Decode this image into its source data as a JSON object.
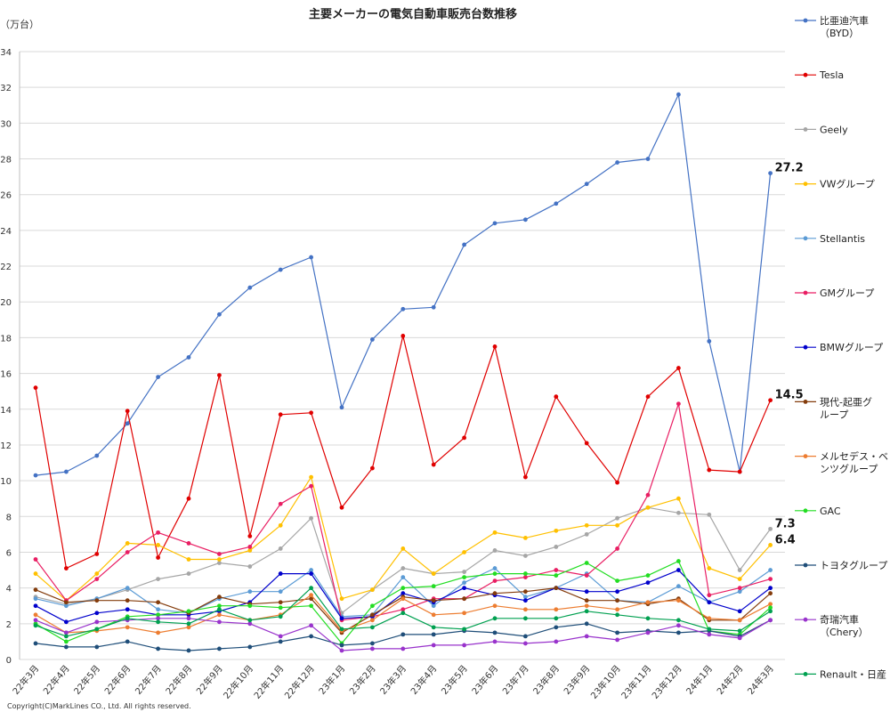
{
  "chart_data": {
    "type": "line",
    "title": "主要メーカーの電気自動車販売台数推移",
    "ylabel": "（万台）",
    "ylim": [
      0,
      34
    ],
    "yticks": [
      0,
      2,
      4,
      6,
      8,
      10,
      12,
      14,
      16,
      18,
      20,
      22,
      24,
      26,
      28,
      30,
      32,
      34
    ],
    "grid": "horizontal",
    "legend_position": "right",
    "x": [
      "22年3月",
      "22年4月",
      "22年5月",
      "22年6月",
      "22年7月",
      "22年8月",
      "22年9月",
      "22年10月",
      "22年11月",
      "22年12月",
      "23年1月",
      "23年2月",
      "23年3月",
      "23年4月",
      "23年5月",
      "23年6月",
      "23年7月",
      "23年8月",
      "23年9月",
      "23年10月",
      "23年11月",
      "23年12月",
      "24年1月",
      "24年2月",
      "24年3月"
    ],
    "series": [
      {
        "name": "比亜迪汽車\n（BYD）",
        "color": "#4472C4",
        "values": [
          10.3,
          10.5,
          11.4,
          13.2,
          15.8,
          16.9,
          19.3,
          20.8,
          21.8,
          22.5,
          14.1,
          17.9,
          19.6,
          19.7,
          23.2,
          24.4,
          24.6,
          25.5,
          26.6,
          27.8,
          28.0,
          31.6,
          17.8,
          10.5,
          27.2
        ]
      },
      {
        "name": "Tesla",
        "color": "#E00000",
        "values": [
          15.2,
          5.1,
          5.9,
          13.9,
          5.7,
          9.0,
          15.9,
          6.9,
          13.7,
          13.8,
          8.5,
          10.7,
          18.1,
          10.9,
          12.4,
          17.5,
          10.2,
          14.7,
          12.1,
          9.9,
          14.7,
          16.3,
          10.6,
          10.5,
          14.5
        ]
      },
      {
        "name": "Geely",
        "color": "#A6A6A6",
        "values": [
          3.5,
          3.1,
          3.4,
          3.9,
          4.5,
          4.8,
          5.4,
          5.2,
          6.2,
          7.9,
          2.6,
          3.9,
          5.1,
          4.8,
          4.9,
          6.1,
          5.8,
          6.3,
          7.0,
          7.9,
          8.5,
          8.2,
          8.1,
          5.0,
          7.3
        ]
      },
      {
        "name": "VWグループ",
        "color": "#FFC000",
        "values": [
          4.8,
          3.3,
          4.8,
          6.5,
          6.4,
          5.6,
          5.6,
          6.1,
          7.5,
          10.2,
          3.4,
          3.9,
          6.2,
          4.8,
          6.0,
          7.1,
          6.8,
          7.2,
          7.5,
          7.5,
          8.5,
          9.0,
          5.1,
          4.5,
          6.4
        ]
      },
      {
        "name": "Stellantis",
        "color": "#5B9BD5",
        "values": [
          3.4,
          3.0,
          3.4,
          4.0,
          2.8,
          2.6,
          3.4,
          3.8,
          3.8,
          5.0,
          2.4,
          2.5,
          4.6,
          3.0,
          4.3,
          5.1,
          3.5,
          4.0,
          4.8,
          3.3,
          3.2,
          4.1,
          3.2,
          3.8,
          5.0
        ]
      },
      {
        "name": "GMグループ",
        "color": "#E91E63",
        "values": [
          5.6,
          3.3,
          4.5,
          6.0,
          7.1,
          6.5,
          5.9,
          6.3,
          8.7,
          9.7,
          2.2,
          2.4,
          2.8,
          3.4,
          3.4,
          4.4,
          4.6,
          5.0,
          4.7,
          6.2,
          9.2,
          14.3,
          3.6,
          4.0,
          4.5
        ]
      },
      {
        "name": "BMWグループ",
        "color": "#0000CC",
        "values": [
          3.0,
          2.1,
          2.6,
          2.8,
          2.5,
          2.5,
          2.7,
          3.2,
          4.8,
          4.8,
          2.3,
          2.4,
          3.7,
          3.2,
          4.0,
          3.6,
          3.3,
          4.0,
          3.8,
          3.8,
          4.3,
          5.0,
          3.2,
          2.7,
          4.0
        ]
      },
      {
        "name": "現代-起亜グ\nループ",
        "color": "#843C0C",
        "values": [
          3.9,
          3.2,
          3.3,
          3.3,
          3.2,
          2.6,
          3.5,
          3.1,
          3.2,
          3.4,
          1.5,
          2.5,
          3.5,
          3.3,
          3.4,
          3.7,
          3.8,
          4.0,
          3.3,
          3.3,
          3.1,
          3.4,
          2.2,
          2.2,
          3.7
        ]
      },
      {
        "name": "メルセデス・ベ\nンツグループ",
        "color": "#ED7D31",
        "values": [
          2.5,
          1.5,
          1.6,
          1.8,
          1.5,
          1.8,
          2.5,
          2.2,
          2.5,
          3.6,
          1.6,
          2.2,
          3.4,
          2.5,
          2.6,
          3.0,
          2.8,
          2.8,
          3.0,
          2.8,
          3.2,
          3.3,
          2.3,
          2.2,
          3.1
        ]
      },
      {
        "name": "GAC",
        "color": "#22DD22",
        "values": [
          2.0,
          1.0,
          1.7,
          2.4,
          2.5,
          2.7,
          3.0,
          3.0,
          2.9,
          3.0,
          0.9,
          3.0,
          4.0,
          4.1,
          4.6,
          4.8,
          4.8,
          4.7,
          5.4,
          4.4,
          4.7,
          5.5,
          1.6,
          1.4,
          2.9
        ]
      },
      {
        "name": "トヨタグループ",
        "color": "#1F4E79",
        "values": [
          0.9,
          0.7,
          0.7,
          1.0,
          0.6,
          0.5,
          0.6,
          0.7,
          1.0,
          1.3,
          0.8,
          0.9,
          1.4,
          1.4,
          1.6,
          1.5,
          1.3,
          1.8,
          2.0,
          1.5,
          1.6,
          1.5,
          1.6,
          1.3,
          2.2
        ]
      },
      {
        "name": "奇瑞汽車\n（Chery）",
        "color": "#9933CC",
        "values": [
          2.2,
          1.5,
          2.1,
          2.2,
          2.3,
          2.3,
          2.1,
          2.0,
          1.3,
          1.9,
          0.5,
          0.6,
          0.6,
          0.8,
          0.8,
          1.0,
          0.9,
          1.0,
          1.3,
          1.1,
          1.5,
          1.9,
          1.4,
          1.2,
          2.2
        ]
      },
      {
        "name": "Renault・日産",
        "color": "#00A050",
        "values": [
          1.9,
          1.3,
          1.7,
          2.3,
          2.1,
          2.0,
          2.8,
          2.2,
          2.4,
          4.0,
          1.7,
          1.8,
          2.6,
          1.8,
          1.7,
          2.3,
          2.3,
          2.3,
          2.7,
          2.5,
          2.3,
          2.2,
          1.7,
          1.6,
          2.7
        ]
      }
    ],
    "annotations": [
      {
        "text": "27.2",
        "series": 0,
        "index": 24
      },
      {
        "text": "14.5",
        "series": 1,
        "index": 24
      },
      {
        "text": "7.3",
        "series": 2,
        "index": 24
      },
      {
        "text": "6.4",
        "series": 3,
        "index": 24
      }
    ]
  },
  "copyright": "Copyright(C)MarkLines CO., Ltd. All rights reserved."
}
